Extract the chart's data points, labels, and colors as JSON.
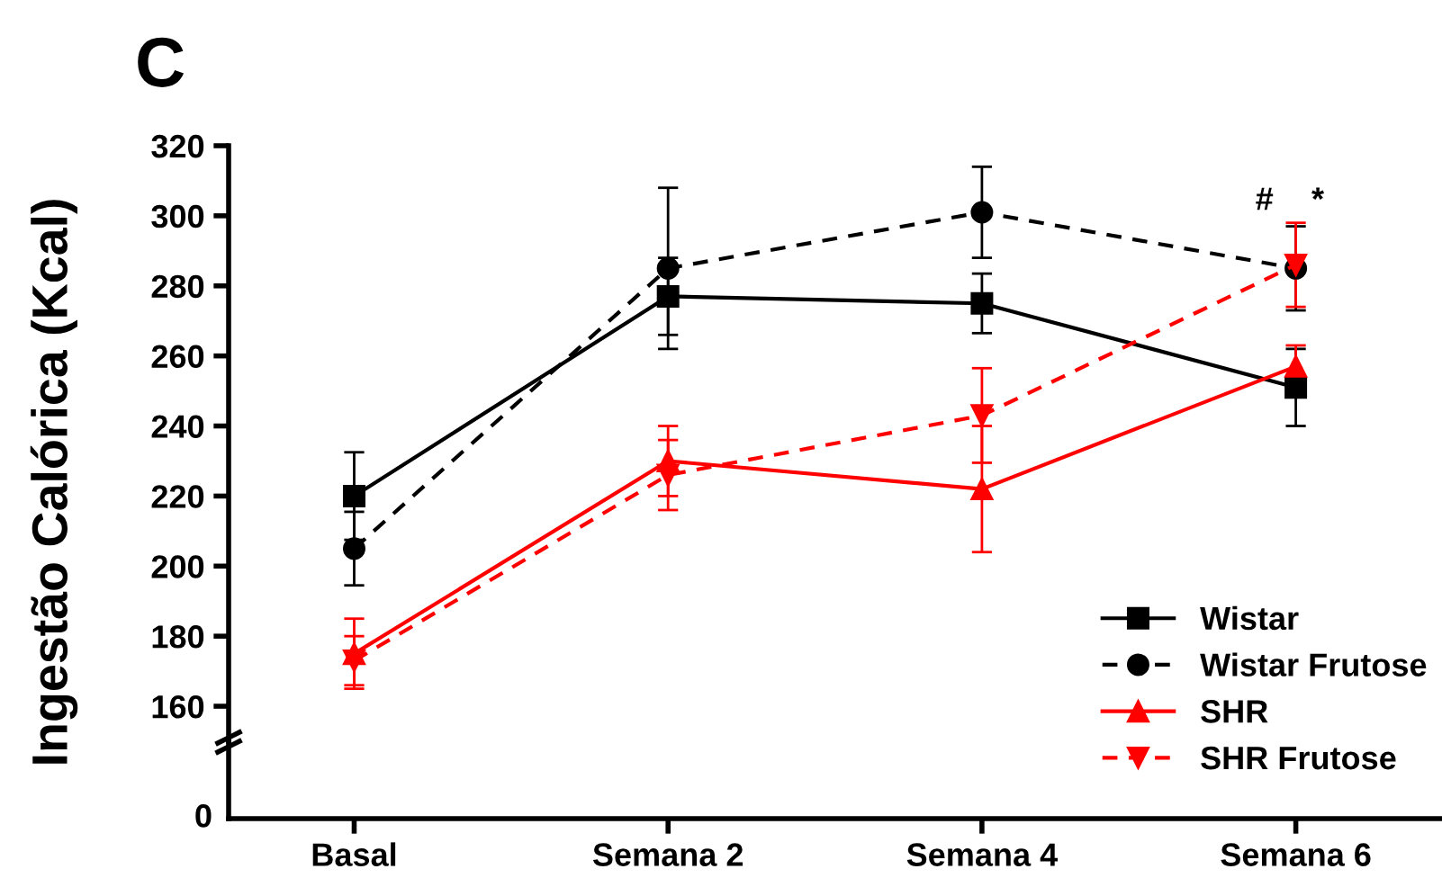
{
  "chart_data": {
    "type": "line",
    "title": "C",
    "ylabel": "Ingestão Calórica (Kcal)",
    "categories": [
      "Basal",
      "Semana 2",
      "Semana 4",
      "Semana 6"
    ],
    "ylim": [
      150,
      320
    ],
    "yticks": [
      160,
      180,
      200,
      220,
      240,
      260,
      280,
      300,
      320
    ],
    "grid": false,
    "legend": "bottom right",
    "annotations": [
      "#",
      "*",
      "0"
    ],
    "series": [
      {
        "name": "Wistar",
        "color": "#000000",
        "marker": "square",
        "line_style": "solid",
        "values": [
          220,
          277,
          275,
          251
        ],
        "errors": [
          12.5,
          11,
          8.5,
          11
        ]
      },
      {
        "name": "Wistar Frutose",
        "color": "#000000",
        "marker": "circle",
        "line_style": "dashed",
        "values": [
          205,
          285,
          301,
          285
        ],
        "errors": [
          10.5,
          23,
          13,
          12
        ]
      },
      {
        "name": "SHR",
        "color": "#ff0000",
        "marker": "triangle",
        "line_style": "solid",
        "values": [
          175,
          230,
          222,
          257
        ],
        "errors": [
          10,
          10,
          18,
          6
        ]
      },
      {
        "name": "SHR Frutose",
        "color": "#ff0000",
        "marker": "triangle_down",
        "line_style": "dashed",
        "values": [
          173,
          226,
          243,
          286
        ],
        "errors": [
          7,
          10,
          13.5,
          12
        ]
      }
    ]
  }
}
